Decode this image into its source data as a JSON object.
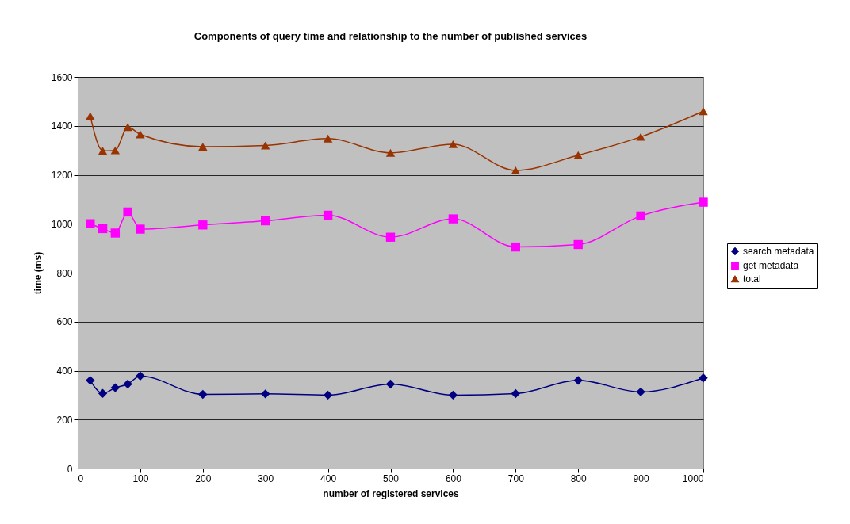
{
  "chart_data": {
    "type": "line",
    "title": "Components of query time and relationship to the number of published services",
    "xlabel": "number of registered services",
    "ylabel": "time (ms)",
    "x": [
      20,
      40,
      60,
      80,
      100,
      200,
      300,
      400,
      500,
      600,
      700,
      800,
      900,
      1000
    ],
    "series": [
      {
        "name": "search metadata",
        "color": "#000080",
        "marker": "diamond",
        "values": [
          360,
          307,
          330,
          345,
          378,
          303,
          305,
          300,
          345,
          300,
          306,
          360,
          313,
          370
        ]
      },
      {
        "name": "get metadata",
        "color": "#ff00ff",
        "marker": "square",
        "values": [
          1000,
          980,
          962,
          1048,
          978,
          995,
          1012,
          1035,
          945,
          1020,
          905,
          915,
          1032,
          1088
        ]
      },
      {
        "name": "total",
        "color": "#993300",
        "marker": "triangle",
        "values": [
          1440,
          1298,
          1300,
          1395,
          1365,
          1315,
          1320,
          1348,
          1290,
          1325,
          1218,
          1280,
          1355,
          1460
        ]
      }
    ],
    "xlim": [
      0,
      1000
    ],
    "xticks": [
      0,
      100,
      200,
      300,
      400,
      500,
      600,
      700,
      800,
      900,
      1000
    ],
    "ylim": [
      0,
      1600
    ],
    "yticks": [
      0,
      200,
      400,
      600,
      800,
      1000,
      1200,
      1400,
      1600
    ],
    "grid": "y",
    "legend": "right",
    "line_style": "solid"
  }
}
